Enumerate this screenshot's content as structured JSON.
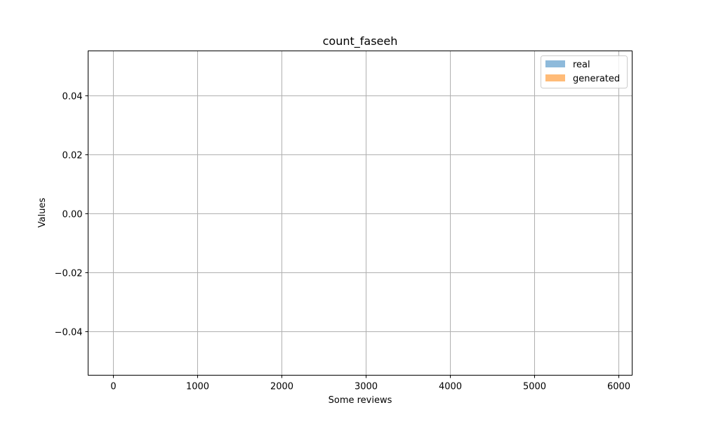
{
  "chart_data": {
    "type": "bar",
    "title": "count_faseeh",
    "xlabel": "Some reviews",
    "ylabel": "Values",
    "xlim": [
      -300,
      6160
    ],
    "ylim": [
      -0.055,
      0.055
    ],
    "xticks": [
      0,
      1000,
      2000,
      3000,
      4000,
      5000,
      6000
    ],
    "xtick_labels": [
      "0",
      "1000",
      "2000",
      "3000",
      "4000",
      "5000",
      "6000"
    ],
    "yticks": [
      -0.04,
      -0.02,
      0.0,
      0.02,
      0.04
    ],
    "ytick_labels": [
      "−0.04",
      "−0.02",
      "0.00",
      "0.02",
      "0.04"
    ],
    "grid": true,
    "legend_position": "top-right",
    "series": [
      {
        "name": "real",
        "color": "#8ebadb",
        "values": []
      },
      {
        "name": "generated",
        "color": "#ffbb78",
        "values": []
      }
    ]
  }
}
